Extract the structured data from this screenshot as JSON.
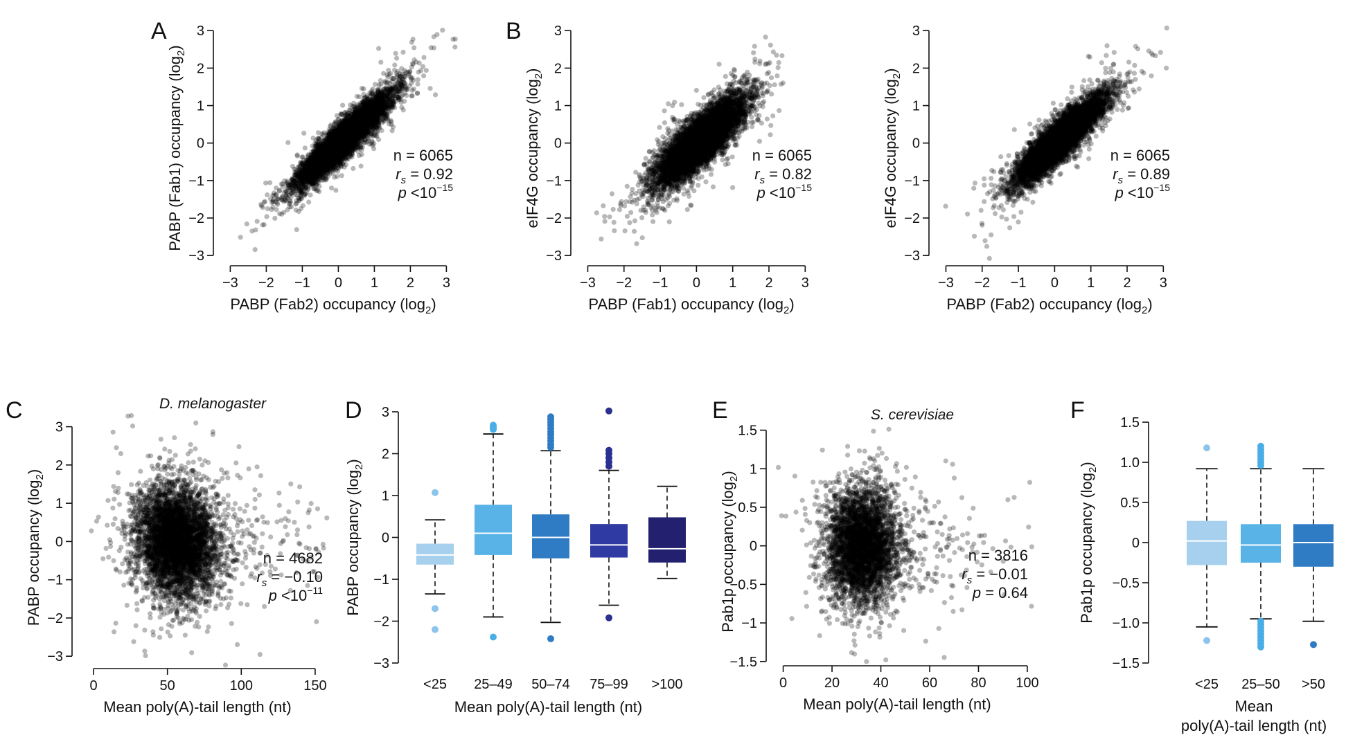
{
  "chart_data": [
    {
      "id": "A1",
      "panel_letter": "A",
      "type": "scatter",
      "xlabel": "PABP (Fab2) occupancy (log",
      "xlabel_sub": "2",
      "xlabel_end": ")",
      "ylabel": "PABP (Fab1) occupancy (log",
      "ylabel_sub": "2",
      "ylabel_end": ")",
      "xlim": [
        -3.2,
        3.3
      ],
      "ylim": [
        -3.2,
        3.3
      ],
      "xticks": [
        -3,
        -2,
        -1,
        0,
        1,
        2,
        3
      ],
      "yticks": [
        -3,
        -2,
        -1,
        0,
        1,
        2,
        3
      ],
      "xtick_labels": [
        "−3",
        "−2",
        "−1",
        "0",
        "1",
        "2",
        "3"
      ],
      "ytick_labels": [
        "−3",
        "−2",
        "−1",
        "0",
        "1",
        "2",
        "3"
      ],
      "points": {
        "count": 6065,
        "center_x": 0.15,
        "center_y": 0.1,
        "sd_x": 0.65,
        "sd_y": 0.62,
        "corr": 0.92,
        "color": "#000000",
        "opacity": 0.28
      },
      "stats": {
        "n": "n = 6065",
        "rs_label": "r",
        "rs_sub": "s",
        "rs_value": " = 0.92",
        "p_label": "p",
        "p_value": " <10",
        "p_exp": "−15"
      }
    },
    {
      "id": "B1",
      "panel_letter": "B",
      "type": "scatter",
      "xlabel": "PABP (Fab1) occupancy (log",
      "xlabel_sub": "2",
      "xlabel_end": ")",
      "ylabel": "eIF4G occupancy (log",
      "ylabel_sub": "2",
      "ylabel_end": ")",
      "xlim": [
        -3.2,
        3.3
      ],
      "ylim": [
        -3.2,
        3.3
      ],
      "xticks": [
        -3,
        -2,
        -1,
        0,
        1,
        2,
        3
      ],
      "yticks": [
        -3,
        -2,
        -1,
        0,
        1,
        2,
        3
      ],
      "xtick_labels": [
        "−3",
        "−2",
        "−1",
        "0",
        "1",
        "2",
        "3"
      ],
      "ytick_labels": [
        "−3",
        "−2",
        "−1",
        "0",
        "1",
        "2",
        "3"
      ],
      "points": {
        "count": 6065,
        "center_x": 0.1,
        "center_y": 0.05,
        "sd_x": 0.62,
        "sd_y": 0.6,
        "corr": 0.82,
        "color": "#000000",
        "opacity": 0.28
      },
      "stats": {
        "n": "n = 6065",
        "rs_label": "r",
        "rs_sub": "s",
        "rs_value": " = 0.82",
        "p_label": "p",
        "p_value": " <10",
        "p_exp": "−15"
      }
    },
    {
      "id": "B2",
      "panel_letter": "",
      "type": "scatter",
      "xlabel": "PABP (Fab2) occupancy (log",
      "xlabel_sub": "2",
      "xlabel_end": ")",
      "ylabel": "eIF4G occupancy (log",
      "ylabel_sub": "2",
      "ylabel_end": ")",
      "xlim": [
        -3.2,
        3.3
      ],
      "ylim": [
        -3.2,
        3.3
      ],
      "xticks": [
        -3,
        -2,
        -1,
        0,
        1,
        2,
        3
      ],
      "yticks": [
        -3,
        -2,
        -1,
        0,
        1,
        2,
        3
      ],
      "xtick_labels": [
        "−3",
        "−2",
        "−1",
        "0",
        "1",
        "2",
        "3"
      ],
      "ytick_labels": [
        "−3",
        "−2",
        "−1",
        "0",
        "1",
        "2",
        "3"
      ],
      "points": {
        "count": 6065,
        "center_x": 0.15,
        "center_y": 0.1,
        "sd_x": 0.62,
        "sd_y": 0.6,
        "corr": 0.89,
        "color": "#000000",
        "opacity": 0.28
      },
      "stats": {
        "n": "n = 6065",
        "rs_label": "r",
        "rs_sub": "s",
        "rs_value": " = 0.89",
        "p_label": "p",
        "p_value": " <10",
        "p_exp": "−15"
      }
    },
    {
      "id": "C",
      "panel_letter": "C",
      "type": "scatter",
      "title": "D. melanogaster",
      "xlabel": "Mean poly(A)-tail length (nt)",
      "ylabel": "PABP occupancy (log",
      "ylabel_sub": "2",
      "ylabel_end": ")",
      "xlim": [
        -8,
        158
      ],
      "ylim": [
        -3.25,
        3.3
      ],
      "xticks": [
        0,
        50,
        100,
        150
      ],
      "yticks": [
        -3,
        -2,
        -1,
        0,
        1,
        2,
        3
      ],
      "xtick_labels": [
        "0",
        "50",
        "100",
        "150"
      ],
      "ytick_labels": [
        "−3",
        "−2",
        "−1",
        "0",
        "1",
        "2",
        "3"
      ],
      "points": {
        "count": 4682,
        "center_x": 56,
        "center_y": 0.0,
        "sd_x": 14,
        "sd_y": 0.75,
        "corr": -0.1,
        "color": "#000000",
        "opacity": 0.28
      },
      "stats": {
        "n": "n = 4682",
        "rs_label": "r",
        "rs_sub": "s",
        "rs_value": " = −0.10",
        "p_label": "p",
        "p_value": " <10",
        "p_exp": "−11"
      }
    },
    {
      "id": "D",
      "panel_letter": "D",
      "type": "box",
      "xlabel": "Mean poly(A)-tail length (nt)",
      "ylabel": "PABP occupancy (log",
      "ylabel_sub": "2",
      "ylabel_end": ")",
      "ylim": [
        -3,
        3
      ],
      "yticks": [
        -3,
        -2,
        -1,
        0,
        1,
        2,
        3
      ],
      "ytick_labels": [
        "−3",
        "−2",
        "−1",
        "0",
        "1",
        "2",
        "3"
      ],
      "categories": [
        "<25",
        "25–49",
        "50–74",
        "75–99",
        ">100"
      ],
      "boxes": [
        {
          "q1": -0.65,
          "median": -0.42,
          "q3": -0.15,
          "whisker_low": -1.35,
          "whisker_high": 0.42,
          "outliers": [
            1.07,
            -1.7,
            -2.2
          ],
          "color": "#a6d0ee",
          "outlier_color": "#8cc4ec"
        },
        {
          "q1": -0.42,
          "median": 0.1,
          "q3": 0.78,
          "whisker_low": -1.9,
          "whisker_high": 2.47,
          "outliers": [
            2.58,
            2.62,
            2.65,
            2.68,
            -2.38
          ],
          "color": "#59b3e6",
          "outlier_color": "#4aaee6"
        },
        {
          "q1": -0.5,
          "median": 0.0,
          "q3": 0.55,
          "whisker_low": -2.03,
          "whisker_high": 2.07,
          "outliers": [
            2.15,
            2.22,
            2.3,
            2.38,
            2.45,
            2.52,
            2.6,
            2.68,
            2.75,
            2.82,
            2.88,
            -2.42
          ],
          "color": "#2f7cc4",
          "outlier_color": "#2f7cc4"
        },
        {
          "q1": -0.48,
          "median": -0.18,
          "q3": 0.32,
          "whisker_low": -1.62,
          "whisker_high": 1.6,
          "outliers": [
            1.7,
            1.8,
            1.9,
            2.0,
            2.08,
            3.02,
            -1.92
          ],
          "color": "#2f3aa3",
          "outlier_color": "#2b318f"
        },
        {
          "q1": -0.6,
          "median": -0.27,
          "q3": 0.48,
          "whisker_low": -0.98,
          "whisker_high": 1.22,
          "outliers": [],
          "color": "#232070",
          "outlier_color": "#232070"
        }
      ]
    },
    {
      "id": "E",
      "panel_letter": "E",
      "type": "scatter",
      "title": "S. cerevisiae",
      "xlabel": "Mean poly(A)-tail length (nt)",
      "ylabel": "Pab1p occupancy (log",
      "ylabel_sub": "2",
      "ylabel_end": ")",
      "xlim": [
        -3,
        102
      ],
      "ylim": [
        -1.52,
        1.55
      ],
      "xticks": [
        0,
        20,
        40,
        60,
        80,
        100
      ],
      "yticks": [
        -1.5,
        -1,
        -0.5,
        0,
        0.5,
        1,
        1.5
      ],
      "xtick_labels": [
        "0",
        "20",
        "40",
        "60",
        "80",
        "100"
      ],
      "ytick_labels": [
        "−1.5",
        "−1",
        "−0.5",
        "0",
        "0.5",
        "1",
        "1.5"
      ],
      "points": {
        "count": 3816,
        "center_x": 32,
        "center_y": 0.0,
        "sd_x": 7.5,
        "sd_y": 0.38,
        "corr": -0.01,
        "color": "#000000",
        "opacity": 0.28
      },
      "stats": {
        "n": "n = 3816",
        "rs_label": "r",
        "rs_sub": "s",
        "rs_value": " = −0.01",
        "p_label": "p",
        "p_value": " = 0.64",
        "p_exp": ""
      }
    },
    {
      "id": "F",
      "panel_letter": "F",
      "type": "box",
      "xlabel": "Mean",
      "xlabel2": "poly(A)-tail length (nt)",
      "ylabel": "Pab1p occupancy (log",
      "ylabel_sub": "2",
      "ylabel_end": ")",
      "ylim": [
        -1.5,
        1.5
      ],
      "yticks": [
        -1.5,
        -1.0,
        -0.5,
        0,
        0.5,
        1.0,
        1.5
      ],
      "ytick_labels": [
        "−1.5",
        "−1.0",
        "−0.5",
        "0",
        "0.5",
        "1.0",
        "1.5"
      ],
      "categories": [
        "<25",
        "25–50",
        ">50"
      ],
      "boxes": [
        {
          "q1": -0.28,
          "median": 0.02,
          "q3": 0.27,
          "whisker_low": -1.05,
          "whisker_high": 0.92,
          "outliers": [
            1.18,
            -1.22
          ],
          "color": "#a6d0ee",
          "outlier_color": "#8cc4ec"
        },
        {
          "q1": -0.25,
          "median": -0.03,
          "q3": 0.23,
          "whisker_low": -0.95,
          "whisker_high": 0.92,
          "outliers": [
            0.96,
            1.0,
            1.04,
            1.08,
            1.12,
            1.16,
            1.2,
            -0.98,
            -1.02,
            -1.06,
            -1.1,
            -1.14,
            -1.18,
            -1.22,
            -1.26,
            -1.3
          ],
          "color": "#59b3e6",
          "outlier_color": "#4aaee6"
        },
        {
          "q1": -0.3,
          "median": 0.0,
          "q3": 0.23,
          "whisker_low": -0.98,
          "whisker_high": 0.92,
          "outliers": [
            -1.27
          ],
          "color": "#2f7cc4",
          "outlier_color": "#2f7cc4"
        }
      ]
    }
  ]
}
